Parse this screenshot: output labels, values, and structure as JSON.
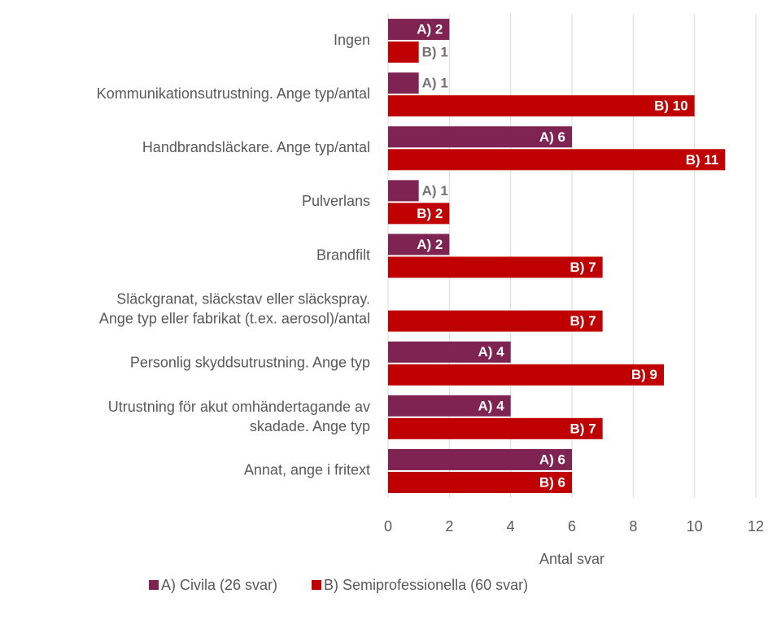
{
  "chart_data": {
    "type": "barh",
    "categories": [
      "Ingen",
      "Kommunikationsutrustning. Ange typ/antal",
      "Handbrandsläckare. Ange typ/antal",
      "Pulverlans",
      "Brandfilt",
      "Släckgranat, släckstav eller släckspray.\nAnge typ eller fabrikat (t.ex. aerosol)/antal",
      "Personlig skyddsutrustning. Ange typ",
      "Utrustning för akut omhändertagande av\nskadade. Ange typ",
      "Annat, ange i fritext"
    ],
    "series": [
      {
        "name": "A) Civila (26 svar)",
        "color": "#7f2452",
        "values": [
          2,
          1,
          6,
          1,
          2,
          0,
          4,
          4,
          6
        ],
        "value_labels": [
          "A) 2",
          "A) 1",
          "A) 6",
          "A) 1",
          "A) 2",
          null,
          "A) 4",
          "A) 4",
          "A) 6"
        ]
      },
      {
        "name": "B) Semiprofessionella (60 svar)",
        "color": "#c00000",
        "values": [
          1,
          10,
          11,
          2,
          7,
          7,
          9,
          7,
          6
        ],
        "value_labels": [
          "B) 1",
          "B) 10",
          "B) 11",
          "B) 2",
          "B) 7",
          "B) 7",
          "B) 9",
          "B) 7",
          "B) 6"
        ]
      }
    ],
    "xlabel": "Antal svar",
    "xlim": [
      0,
      12
    ],
    "xticks": [
      0,
      2,
      4,
      6,
      8,
      10,
      12
    ],
    "grid": true,
    "legend": "bottom"
  }
}
